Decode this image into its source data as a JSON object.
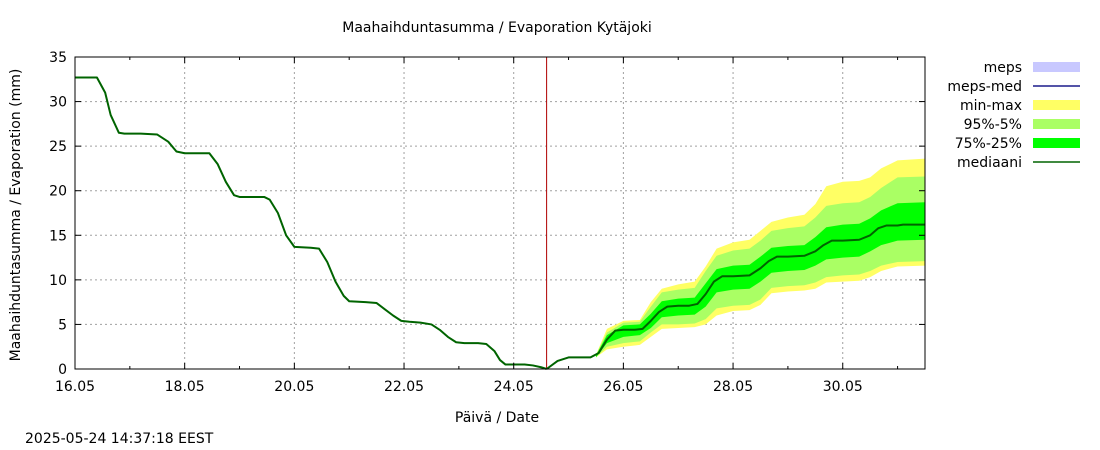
{
  "chart_data": {
    "type": "area",
    "title": "Maahaihduntasumma / Evaporation   Kytäjoki",
    "xlabel": "Päivä / Date",
    "ylabel": "Maahaihduntasumma / Evaporation (mm)",
    "xlim": [
      16.0,
      31.5
    ],
    "ylim": [
      0,
      35
    ],
    "yticks": [
      0,
      5,
      10,
      15,
      20,
      25,
      30,
      35
    ],
    "xticks": [
      {
        "value": 16,
        "label": "16.05"
      },
      {
        "value": 18,
        "label": "18.05"
      },
      {
        "value": 20,
        "label": "20.05"
      },
      {
        "value": 22,
        "label": "22.05"
      },
      {
        "value": 24,
        "label": "24.05"
      },
      {
        "value": 26,
        "label": "26.05"
      },
      {
        "value": 28,
        "label": "28.05"
      },
      {
        "value": 30,
        "label": "30.05"
      }
    ],
    "grid": true,
    "forecast_start": 24.6,
    "legend": {
      "position": "top-right",
      "items": [
        {
          "key": "meps",
          "label": "meps",
          "kind": "band",
          "color": "#c8c8ff"
        },
        {
          "key": "meps_med",
          "label": "meps-med",
          "kind": "line",
          "color": "#1c1c8c"
        },
        {
          "key": "min_max",
          "label": "min-max",
          "kind": "band",
          "color": "#ffff64"
        },
        {
          "key": "p95_5",
          "label": "95%-5%",
          "kind": "band",
          "color": "#aaff64"
        },
        {
          "key": "p75_25",
          "label": "75%-25%",
          "kind": "band",
          "color": "#00ff00"
        },
        {
          "key": "median",
          "label": "mediaani",
          "kind": "line",
          "color": "#006400"
        }
      ]
    },
    "series": [
      {
        "name": "observed",
        "x": [
          16.0,
          16.4,
          16.55,
          16.65,
          16.8,
          16.9,
          17.2,
          17.5,
          17.7,
          17.85,
          18.0,
          18.45,
          18.6,
          18.75,
          18.9,
          19.0,
          19.45,
          19.55,
          19.7,
          19.85,
          20.0,
          20.3,
          20.45,
          20.6,
          20.75,
          20.9,
          21.0,
          21.3,
          21.5,
          21.65,
          21.8,
          21.95,
          22.1,
          22.3,
          22.5,
          22.65,
          22.8,
          22.95,
          23.1,
          23.35,
          23.5,
          23.65,
          23.75,
          23.85,
          24.2,
          24.35,
          24.5,
          24.6
        ],
        "values": [
          32.7,
          32.7,
          31.0,
          28.5,
          26.5,
          26.4,
          26.4,
          26.3,
          25.5,
          24.4,
          24.2,
          24.2,
          23.0,
          21.0,
          19.5,
          19.3,
          19.3,
          19.0,
          17.5,
          15.0,
          13.7,
          13.6,
          13.5,
          12.0,
          9.8,
          8.2,
          7.6,
          7.5,
          7.4,
          6.7,
          6.0,
          5.4,
          5.3,
          5.2,
          5.0,
          4.4,
          3.6,
          3.0,
          2.9,
          2.9,
          2.8,
          2.0,
          1.0,
          0.5,
          0.5,
          0.4,
          0.2,
          0.0
        ]
      },
      {
        "name": "mediaani",
        "x": [
          24.6,
          24.8,
          25.0,
          25.4,
          25.55,
          25.7,
          25.85,
          26.0,
          26.2,
          26.35,
          26.5,
          26.65,
          26.8,
          27.0,
          27.2,
          27.35,
          27.5,
          27.65,
          27.8,
          28.0,
          28.3,
          28.5,
          28.65,
          28.8,
          29.0,
          29.3,
          29.5,
          29.65,
          29.8,
          30.0,
          30.3,
          30.5,
          30.65,
          30.8,
          31.0,
          31.1,
          31.5
        ],
        "values": [
          0.0,
          0.9,
          1.3,
          1.3,
          1.8,
          3.3,
          4.3,
          4.4,
          4.4,
          4.5,
          5.4,
          6.4,
          7.0,
          7.1,
          7.1,
          7.3,
          8.4,
          9.8,
          10.4,
          10.4,
          10.5,
          11.3,
          12.1,
          12.6,
          12.6,
          12.7,
          13.2,
          13.9,
          14.4,
          14.4,
          14.5,
          15.0,
          15.8,
          16.1,
          16.1,
          16.2,
          16.2
        ]
      }
    ],
    "bands": [
      {
        "name": "min-max",
        "x": [
          25.5,
          25.7,
          26.0,
          26.3,
          26.5,
          26.7,
          27.0,
          27.3,
          27.5,
          27.7,
          28.0,
          28.3,
          28.5,
          28.7,
          29.0,
          29.3,
          29.5,
          29.7,
          30.0,
          30.3,
          30.5,
          30.7,
          31.0,
          31.5
        ],
        "upper": [
          1.6,
          4.5,
          5.4,
          5.5,
          7.5,
          9.0,
          9.5,
          9.8,
          11.5,
          13.5,
          14.2,
          14.5,
          15.5,
          16.5,
          17.0,
          17.3,
          18.5,
          20.5,
          21.0,
          21.1,
          21.5,
          22.5,
          23.4,
          23.6
        ],
        "lower": [
          1.3,
          2.2,
          2.5,
          2.7,
          3.6,
          4.5,
          4.6,
          4.7,
          5.0,
          6.0,
          6.5,
          6.6,
          7.2,
          8.5,
          8.7,
          8.8,
          9.0,
          9.7,
          9.8,
          9.9,
          10.3,
          11.0,
          11.5,
          11.6
        ]
      },
      {
        "name": "95%-5%",
        "x": [
          25.5,
          25.7,
          26.0,
          26.3,
          26.5,
          26.7,
          27.0,
          27.3,
          27.5,
          27.7,
          28.0,
          28.3,
          28.5,
          28.7,
          29.0,
          29.3,
          29.5,
          29.7,
          30.0,
          30.3,
          30.5,
          30.7,
          31.0,
          31.5
        ],
        "upper": [
          1.6,
          4.1,
          5.2,
          5.3,
          7.0,
          8.6,
          8.9,
          9.1,
          11.0,
          12.7,
          13.3,
          13.5,
          14.4,
          15.5,
          15.8,
          16.0,
          17.0,
          18.3,
          18.6,
          18.7,
          19.3,
          20.3,
          21.5,
          21.6
        ],
        "lower": [
          1.3,
          2.5,
          2.9,
          3.1,
          4.1,
          5.0,
          5.0,
          5.1,
          5.6,
          6.8,
          7.1,
          7.2,
          7.8,
          9.1,
          9.3,
          9.4,
          9.7,
          10.3,
          10.5,
          10.6,
          11.0,
          11.6,
          12.0,
          12.1
        ]
      },
      {
        "name": "75%-25%",
        "x": [
          25.5,
          25.7,
          26.0,
          26.3,
          26.5,
          26.7,
          27.0,
          27.3,
          27.5,
          27.7,
          28.0,
          28.3,
          28.5,
          28.7,
          29.0,
          29.3,
          29.5,
          29.7,
          30.0,
          30.3,
          30.5,
          30.7,
          31.0,
          31.5
        ],
        "upper": [
          1.5,
          3.8,
          4.9,
          5.0,
          6.2,
          7.6,
          7.9,
          8.0,
          9.6,
          11.2,
          11.6,
          11.7,
          12.6,
          13.6,
          13.8,
          13.9,
          14.8,
          15.9,
          16.2,
          16.3,
          16.9,
          17.8,
          18.6,
          18.7
        ],
        "lower": [
          1.3,
          2.9,
          3.6,
          3.8,
          4.6,
          5.8,
          6.0,
          6.1,
          7.0,
          8.6,
          8.9,
          9.0,
          9.8,
          10.8,
          11.0,
          11.1,
          11.6,
          12.3,
          12.5,
          12.6,
          13.2,
          13.9,
          14.4,
          14.5
        ]
      }
    ]
  },
  "footer": {
    "timestamp": "2025-05-24 14:37:18 EEST"
  }
}
